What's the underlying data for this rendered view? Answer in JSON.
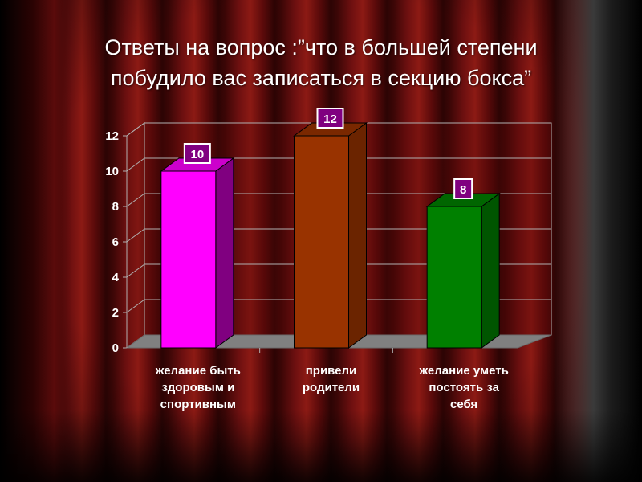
{
  "slide": {
    "title_line1": "Ответы на вопрос :”что в большей степени",
    "title_line2": "побудило вас записаться в секцию бокса”"
  },
  "chart_data": {
    "type": "bar",
    "categories": [
      [
        "желание быть",
        "здоровым и",
        "спортивным"
      ],
      [
        "привели",
        "родители"
      ],
      [
        "желание уметь",
        "постоять за",
        "себя"
      ]
    ],
    "values": [
      10,
      12,
      8
    ],
    "ylim": [
      0,
      12
    ],
    "yticks": [
      0,
      2,
      4,
      6,
      8,
      10,
      12
    ],
    "grid": true,
    "legend": "none",
    "colors": {
      "bars": [
        "#ff00ff",
        "#993300",
        "#008000"
      ],
      "bar_sides": [
        "#800080",
        "#6b2400",
        "#005500"
      ],
      "bar_tops": [
        "#cc00cc",
        "#7a2800",
        "#006600"
      ],
      "label_box": "#800080",
      "floor": "#808080",
      "walls": "#5a0a0a"
    }
  }
}
